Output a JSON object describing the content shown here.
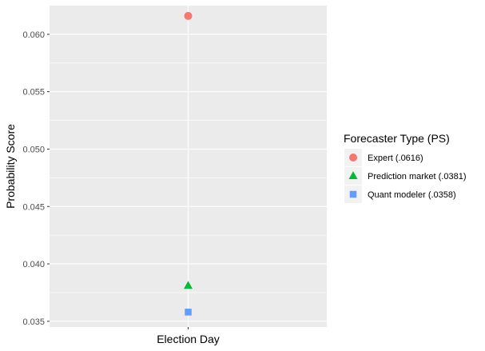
{
  "chart_data": {
    "type": "scatter",
    "title": "",
    "xlabel": "Election Day",
    "ylabel": "Probability Score",
    "categories": [
      "Election Day"
    ],
    "xticks": [
      ""
    ],
    "ylim": [
      0.0345,
      0.0625
    ],
    "yticks": [
      0.035,
      0.04,
      0.045,
      0.05,
      0.055,
      0.06
    ],
    "ytick_labels": [
      "0.035",
      "0.040",
      "0.045",
      "0.050",
      "0.055",
      "0.060"
    ],
    "grid": true,
    "legend": {
      "title": "Forecaster Type (PS)",
      "position": "right"
    },
    "series": [
      {
        "name": "Expert (.0616)",
        "shape": "circle",
        "color": "#F8766D",
        "x": [
          "Election Day"
        ],
        "values": [
          0.0616
        ]
      },
      {
        "name": "Prediction market (.0381)",
        "shape": "triangle",
        "color": "#00BA38",
        "x": [
          "Election Day"
        ],
        "values": [
          0.0381
        ]
      },
      {
        "name": "Quant modeler (.0358)",
        "shape": "square",
        "color": "#619CFF",
        "x": [
          "Election Day"
        ],
        "values": [
          0.0358
        ]
      }
    ]
  }
}
